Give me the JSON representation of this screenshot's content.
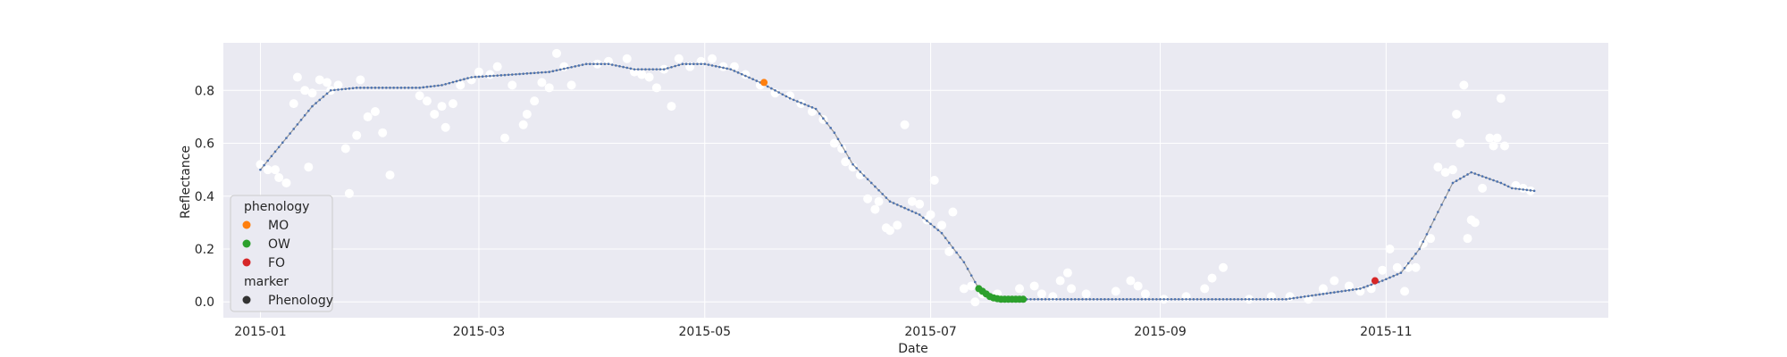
{
  "chart_data": {
    "type": "scatter",
    "title": "",
    "xlabel": "Date",
    "ylabel": "Reflectance",
    "x_type": "date",
    "xlim": [
      "2014-12-22",
      "2015-12-31"
    ],
    "ylim": [
      -0.06,
      0.98
    ],
    "x_ticks": [
      "2015-01",
      "2015-03",
      "2015-05",
      "2015-07",
      "2015-09",
      "2015-11"
    ],
    "y_ticks": [
      "0.0",
      "0.2",
      "0.4",
      "0.6",
      "0.8"
    ],
    "grid": true,
    "background": "#eaeaf2",
    "legend": {
      "position": "lower-left",
      "hue_title": "phenology",
      "style_title": "marker",
      "entries": [
        {
          "label": "MO",
          "color": "#ff7f0e"
        },
        {
          "label": "OW",
          "color": "#2ca02c"
        },
        {
          "label": "FO",
          "color": "#d62728"
        }
      ],
      "style_entries": [
        {
          "label": "Phenology",
          "color": "#333333"
        }
      ]
    },
    "observations": {
      "color": "#ffffff",
      "points": [
        [
          "2015-01-01",
          0.52
        ],
        [
          "2015-01-03",
          0.5
        ],
        [
          "2015-01-05",
          0.5
        ],
        [
          "2015-01-06",
          0.47
        ],
        [
          "2015-01-08",
          0.45
        ],
        [
          "2015-01-10",
          0.75
        ],
        [
          "2015-01-11",
          0.85
        ],
        [
          "2015-01-13",
          0.8
        ],
        [
          "2015-01-14",
          0.51
        ],
        [
          "2015-01-15",
          0.79
        ],
        [
          "2015-01-17",
          0.84
        ],
        [
          "2015-01-19",
          0.83
        ],
        [
          "2015-01-20",
          0.8
        ],
        [
          "2015-01-22",
          0.82
        ],
        [
          "2015-01-24",
          0.58
        ],
        [
          "2015-01-25",
          0.41
        ],
        [
          "2015-01-27",
          0.63
        ],
        [
          "2015-01-28",
          0.84
        ],
        [
          "2015-01-30",
          0.7
        ],
        [
          "2015-02-01",
          0.72
        ],
        [
          "2015-02-03",
          0.64
        ],
        [
          "2015-02-05",
          0.48
        ],
        [
          "2015-02-13",
          0.78
        ],
        [
          "2015-02-15",
          0.76
        ],
        [
          "2015-02-17",
          0.71
        ],
        [
          "2015-02-19",
          0.74
        ],
        [
          "2015-02-20",
          0.66
        ],
        [
          "2015-02-22",
          0.75
        ],
        [
          "2015-02-24",
          0.82
        ],
        [
          "2015-02-27",
          0.84
        ],
        [
          "2015-03-01",
          0.87
        ],
        [
          "2015-03-04",
          0.86
        ],
        [
          "2015-03-06",
          0.89
        ],
        [
          "2015-03-08",
          0.62
        ],
        [
          "2015-03-10",
          0.82
        ],
        [
          "2015-03-13",
          0.67
        ],
        [
          "2015-03-14",
          0.71
        ],
        [
          "2015-03-16",
          0.76
        ],
        [
          "2015-03-18",
          0.83
        ],
        [
          "2015-03-20",
          0.81
        ],
        [
          "2015-03-22",
          0.94
        ],
        [
          "2015-03-24",
          0.89
        ],
        [
          "2015-03-26",
          0.82
        ],
        [
          "2015-04-02",
          0.9
        ],
        [
          "2015-04-05",
          0.91
        ],
        [
          "2015-04-10",
          0.92
        ],
        [
          "2015-04-12",
          0.87
        ],
        [
          "2015-04-14",
          0.86
        ],
        [
          "2015-04-16",
          0.85
        ],
        [
          "2015-04-18",
          0.81
        ],
        [
          "2015-04-20",
          0.88
        ],
        [
          "2015-04-22",
          0.74
        ],
        [
          "2015-04-24",
          0.92
        ],
        [
          "2015-04-27",
          0.89
        ],
        [
          "2015-04-30",
          0.91
        ],
        [
          "2015-05-03",
          0.92
        ],
        [
          "2015-05-06",
          0.89
        ],
        [
          "2015-05-09",
          0.89
        ],
        [
          "2015-05-12",
          0.86
        ],
        [
          "2015-05-16",
          0.82
        ],
        [
          "2015-05-20",
          0.79
        ],
        [
          "2015-05-24",
          0.78
        ],
        [
          "2015-05-27",
          0.75
        ],
        [
          "2015-05-30",
          0.72
        ],
        [
          "2015-06-02",
          0.69
        ],
        [
          "2015-06-05",
          0.6
        ],
        [
          "2015-06-07",
          0.58
        ],
        [
          "2015-06-08",
          0.53
        ],
        [
          "2015-06-10",
          0.51
        ],
        [
          "2015-06-12",
          0.48
        ],
        [
          "2015-06-14",
          0.39
        ],
        [
          "2015-06-16",
          0.35
        ],
        [
          "2015-06-17",
          0.38
        ],
        [
          "2015-06-19",
          0.28
        ],
        [
          "2015-06-20",
          0.27
        ],
        [
          "2015-06-22",
          0.29
        ],
        [
          "2015-06-24",
          0.67
        ],
        [
          "2015-06-26",
          0.38
        ],
        [
          "2015-06-28",
          0.37
        ],
        [
          "2015-06-30",
          0.31
        ],
        [
          "2015-07-01",
          0.33
        ],
        [
          "2015-07-02",
          0.46
        ],
        [
          "2015-07-04",
          0.29
        ],
        [
          "2015-07-06",
          0.19
        ],
        [
          "2015-07-07",
          0.34
        ],
        [
          "2015-07-10",
          0.05
        ],
        [
          "2015-07-12",
          0.06
        ],
        [
          "2015-07-13",
          0.0
        ],
        [
          "2015-07-15",
          0.03
        ],
        [
          "2015-07-19",
          0.03
        ],
        [
          "2015-07-25",
          0.05
        ],
        [
          "2015-07-29",
          0.06
        ],
        [
          "2015-07-31",
          0.03
        ],
        [
          "2015-08-03",
          0.02
        ],
        [
          "2015-08-05",
          0.08
        ],
        [
          "2015-08-07",
          0.11
        ],
        [
          "2015-08-08",
          0.05
        ],
        [
          "2015-08-12",
          0.03
        ],
        [
          "2015-08-20",
          0.04
        ],
        [
          "2015-08-24",
          0.08
        ],
        [
          "2015-08-26",
          0.06
        ],
        [
          "2015-08-28",
          0.03
        ],
        [
          "2015-09-02",
          0.01
        ],
        [
          "2015-09-08",
          0.02
        ],
        [
          "2015-09-13",
          0.05
        ],
        [
          "2015-09-15",
          0.09
        ],
        [
          "2015-09-18",
          0.13
        ],
        [
          "2015-09-25",
          0.01
        ],
        [
          "2015-10-01",
          0.02
        ],
        [
          "2015-10-06",
          0.02
        ],
        [
          "2015-10-11",
          0.01
        ],
        [
          "2015-10-15",
          0.05
        ],
        [
          "2015-10-18",
          0.08
        ],
        [
          "2015-10-22",
          0.06
        ],
        [
          "2015-10-25",
          0.04
        ],
        [
          "2015-10-28",
          0.05
        ],
        [
          "2015-10-31",
          0.12
        ],
        [
          "2015-11-02",
          0.2
        ],
        [
          "2015-11-04",
          0.13
        ],
        [
          "2015-11-06",
          0.04
        ],
        [
          "2015-11-07",
          0.13
        ],
        [
          "2015-11-09",
          0.13
        ],
        [
          "2015-11-11",
          0.22
        ],
        [
          "2015-11-13",
          0.24
        ],
        [
          "2015-11-15",
          0.51
        ],
        [
          "2015-11-17",
          0.49
        ],
        [
          "2015-11-19",
          0.5
        ],
        [
          "2015-11-20",
          0.71
        ],
        [
          "2015-11-21",
          0.6
        ],
        [
          "2015-11-22",
          0.82
        ],
        [
          "2015-11-23",
          0.24
        ],
        [
          "2015-11-24",
          0.31
        ],
        [
          "2015-11-25",
          0.3
        ],
        [
          "2015-11-27",
          0.43
        ],
        [
          "2015-11-29",
          0.62
        ],
        [
          "2015-11-30",
          0.59
        ],
        [
          "2015-12-01",
          0.62
        ],
        [
          "2015-12-02",
          0.77
        ],
        [
          "2015-12-03",
          0.59
        ],
        [
          "2015-12-06",
          0.44
        ],
        [
          "2015-12-08",
          0.43
        ],
        [
          "2015-12-10",
          0.42
        ]
      ]
    },
    "smoothed": {
      "line_color": "#999999",
      "marker_color": "#4c72b0",
      "points": [
        [
          "2015-01-01",
          0.5
        ],
        [
          "2015-01-08",
          0.62
        ],
        [
          "2015-01-15",
          0.74
        ],
        [
          "2015-01-20",
          0.8
        ],
        [
          "2015-01-27",
          0.81
        ],
        [
          "2015-02-05",
          0.81
        ],
        [
          "2015-02-13",
          0.81
        ],
        [
          "2015-02-19",
          0.82
        ],
        [
          "2015-02-27",
          0.85
        ],
        [
          "2015-03-10",
          0.86
        ],
        [
          "2015-03-20",
          0.87
        ],
        [
          "2015-03-30",
          0.9
        ],
        [
          "2015-04-05",
          0.9
        ],
        [
          "2015-04-12",
          0.88
        ],
        [
          "2015-04-20",
          0.88
        ],
        [
          "2015-04-25",
          0.9
        ],
        [
          "2015-05-01",
          0.9
        ],
        [
          "2015-05-08",
          0.88
        ],
        [
          "2015-05-16",
          0.83
        ],
        [
          "2015-05-24",
          0.77
        ],
        [
          "2015-05-31",
          0.73
        ],
        [
          "2015-06-05",
          0.64
        ],
        [
          "2015-06-10",
          0.52
        ],
        [
          "2015-06-15",
          0.45
        ],
        [
          "2015-06-20",
          0.38
        ],
        [
          "2015-06-28",
          0.33
        ],
        [
          "2015-07-04",
          0.26
        ],
        [
          "2015-07-10",
          0.15
        ],
        [
          "2015-07-14",
          0.05
        ],
        [
          "2015-07-18",
          0.02
        ],
        [
          "2015-07-22",
          0.01
        ],
        [
          "2015-07-26",
          0.01
        ],
        [
          "2015-08-05",
          0.01
        ],
        [
          "2015-08-15",
          0.01
        ],
        [
          "2015-08-25",
          0.01
        ],
        [
          "2015-09-05",
          0.01
        ],
        [
          "2015-09-20",
          0.01
        ],
        [
          "2015-10-05",
          0.01
        ],
        [
          "2015-10-15",
          0.03
        ],
        [
          "2015-10-25",
          0.05
        ],
        [
          "2015-10-31",
          0.08
        ],
        [
          "2015-11-05",
          0.11
        ],
        [
          "2015-11-10",
          0.2
        ],
        [
          "2015-11-15",
          0.34
        ],
        [
          "2015-11-19",
          0.45
        ],
        [
          "2015-11-24",
          0.49
        ],
        [
          "2015-11-28",
          0.47
        ],
        [
          "2015-12-02",
          0.45
        ],
        [
          "2015-12-05",
          0.43
        ],
        [
          "2015-12-11",
          0.42
        ]
      ]
    },
    "phenology_points": {
      "MO": [
        [
          "2015-05-17",
          0.83
        ]
      ],
      "OW": [
        [
          "2015-07-14",
          0.05
        ],
        [
          "2015-07-15",
          0.04
        ],
        [
          "2015-07-16",
          0.03
        ],
        [
          "2015-07-17",
          0.02
        ],
        [
          "2015-07-18",
          0.015
        ],
        [
          "2015-07-19",
          0.012
        ],
        [
          "2015-07-20",
          0.01
        ],
        [
          "2015-07-21",
          0.01
        ],
        [
          "2015-07-22",
          0.01
        ],
        [
          "2015-07-23",
          0.01
        ],
        [
          "2015-07-24",
          0.01
        ],
        [
          "2015-07-25",
          0.01
        ],
        [
          "2015-07-26",
          0.01
        ]
      ],
      "FO": [
        [
          "2015-10-29",
          0.08
        ]
      ]
    }
  }
}
